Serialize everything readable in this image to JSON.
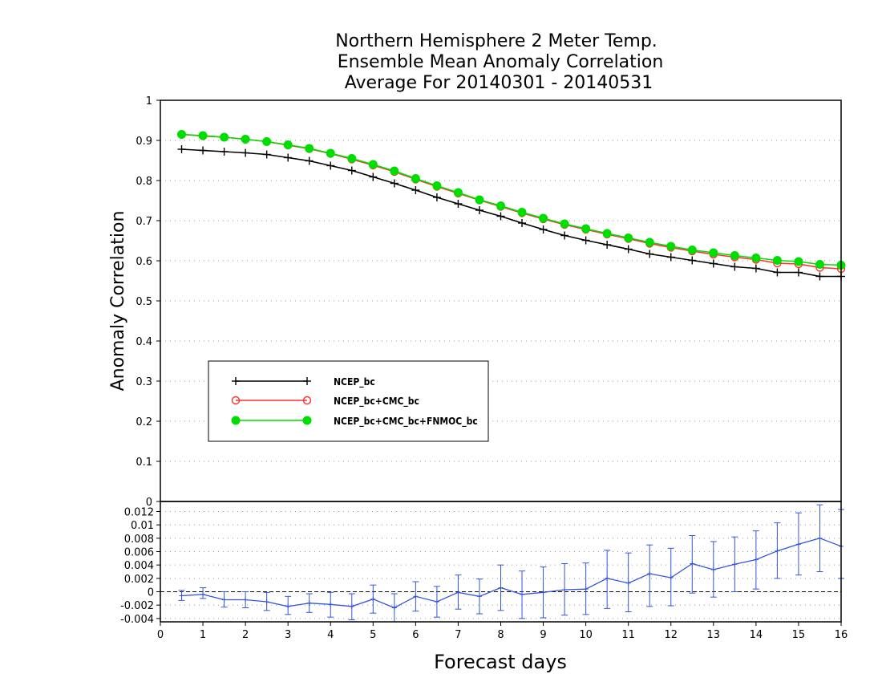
{
  "chart_data": [
    {
      "type": "line",
      "title_lines": [
        "Northern Hemisphere 2 Meter Temp.",
        "Ensemble Mean Anomaly Correlation",
        "Average For 20140301 - 20140531"
      ],
      "ylabel": "Anomaly Correlation",
      "xlim": [
        0,
        16
      ],
      "ylim": [
        0,
        1
      ],
      "yticks": [
        "0",
        "0.1",
        "0.2",
        "0.3",
        "0.4",
        "0.5",
        "0.6",
        "0.7",
        "0.8",
        "0.9",
        "1"
      ],
      "grid": true,
      "legend_position": "lower-left",
      "x": [
        0.5,
        1,
        1.5,
        2,
        2.5,
        3,
        3.5,
        4,
        4.5,
        5,
        5.5,
        6,
        6.5,
        7,
        7.5,
        8,
        8.5,
        9,
        9.5,
        10,
        10.5,
        11,
        11.5,
        12,
        12.5,
        13,
        13.5,
        14,
        14.5,
        15,
        15.5,
        16
      ],
      "series": [
        {
          "name": "NCEP_bc",
          "color": "#000000",
          "marker": "plus",
          "values": [
            0.878,
            0.875,
            0.872,
            0.869,
            0.865,
            0.857,
            0.849,
            0.837,
            0.825,
            0.809,
            0.793,
            0.776,
            0.758,
            0.742,
            0.726,
            0.711,
            0.694,
            0.678,
            0.663,
            0.651,
            0.64,
            0.629,
            0.617,
            0.609,
            0.601,
            0.593,
            0.585,
            0.581,
            0.571,
            0.571,
            0.561,
            0.561
          ]
        },
        {
          "name": "NCEP_bc+CMC_bc",
          "color": "#ff3030",
          "marker": "open-circle",
          "values": [
            0.915,
            0.911,
            0.908,
            0.903,
            0.897,
            0.888,
            0.879,
            0.867,
            0.853,
            0.838,
            0.822,
            0.803,
            0.785,
            0.768,
            0.751,
            0.735,
            0.719,
            0.704,
            0.69,
            0.678,
            0.666,
            0.655,
            0.643,
            0.633,
            0.624,
            0.616,
            0.609,
            0.603,
            0.594,
            0.592,
            0.583,
            0.58
          ]
        },
        {
          "name": "NCEP_bc+CMC_bc+FNMOC_bc",
          "color": "#00dd00",
          "marker": "filled-circle",
          "values": [
            0.915,
            0.912,
            0.908,
            0.903,
            0.897,
            0.889,
            0.88,
            0.868,
            0.855,
            0.84,
            0.824,
            0.805,
            0.787,
            0.77,
            0.752,
            0.737,
            0.721,
            0.706,
            0.692,
            0.68,
            0.668,
            0.657,
            0.646,
            0.636,
            0.627,
            0.62,
            0.613,
            0.607,
            0.601,
            0.598,
            0.591,
            0.589
          ]
        }
      ]
    },
    {
      "type": "line",
      "xlabel": "Forecast days",
      "xlim": [
        0,
        16
      ],
      "ylim": [
        -0.0045,
        0.0135
      ],
      "yticks": [
        "-0.004",
        "-0.002",
        "0",
        "0.002",
        "0.004",
        "0.006",
        "0.008",
        "0.01",
        "0.012"
      ],
      "xticks": [
        "0",
        "1",
        "2",
        "3",
        "4",
        "5",
        "6",
        "7",
        "8",
        "9",
        "10",
        "11",
        "12",
        "13",
        "14",
        "15",
        "16"
      ],
      "grid": true,
      "x": [
        0.5,
        1,
        1.5,
        2,
        2.5,
        3,
        3.5,
        4,
        4.5,
        5,
        5.5,
        6,
        6.5,
        7,
        7.5,
        8,
        8.5,
        9,
        9.5,
        10,
        10.5,
        11,
        11.5,
        12,
        12.5,
        13,
        13.5,
        14,
        14.5,
        15,
        15.5,
        16
      ],
      "series": [
        {
          "color": "#3355dd",
          "values": [
            -0.0006,
            -0.0004,
            -0.0012,
            -0.0012,
            -0.0015,
            -0.0022,
            -0.0017,
            -0.0019,
            -0.0022,
            -0.0011,
            -0.0024,
            -0.0007,
            -0.0015,
            -0.0001,
            -0.0007,
            0.0006,
            -0.0004,
            -0.0001,
            0.0003,
            0.0004,
            0.002,
            0.0013,
            0.0027,
            0.0021,
            0.0042,
            0.0033,
            0.0041,
            0.0048,
            0.0061,
            0.0071,
            0.008,
            0.0068
          ],
          "err_low": [
            -0.0013,
            -0.001,
            -0.0023,
            -0.0024,
            -0.0028,
            -0.0034,
            -0.0031,
            -0.0038,
            -0.0042,
            -0.0032,
            -0.0045,
            -0.0029,
            -0.0038,
            -0.0026,
            -0.0033,
            -0.0028,
            -0.004,
            -0.0039,
            -0.0035,
            -0.0034,
            -0.0025,
            -0.003,
            -0.0022,
            -0.0021,
            -0.0002,
            -0.0008,
            0.0,
            0.0004,
            0.002,
            0.0025,
            0.003,
            0.002
          ],
          "err_high": [
            0.0002,
            0.0006,
            0.0,
            0.0,
            -0.0001,
            -0.0007,
            -0.0003,
            -0.0001,
            -0.0003,
            0.001,
            -0.0003,
            0.0015,
            0.0008,
            0.0025,
            0.0019,
            0.004,
            0.0031,
            0.0037,
            0.0042,
            0.0043,
            0.0062,
            0.0058,
            0.007,
            0.0065,
            0.0084,
            0.0075,
            0.0082,
            0.0091,
            0.0103,
            0.0118,
            0.013,
            0.0123
          ]
        }
      ]
    }
  ]
}
